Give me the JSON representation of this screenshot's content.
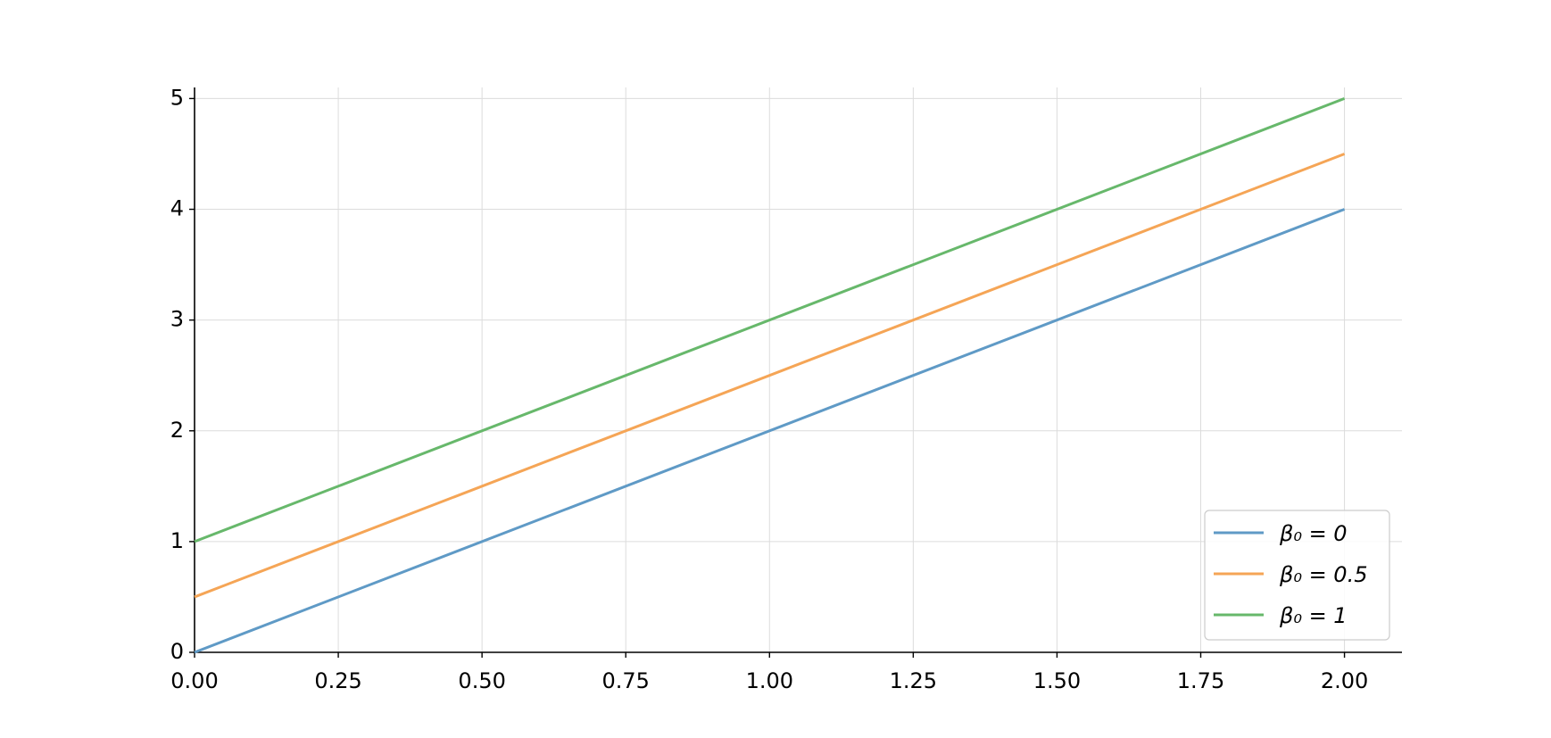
{
  "chart_data": {
    "type": "line",
    "x": [
      0,
      2
    ],
    "series": [
      {
        "name": "β₀ = 0",
        "color": "#5f9ac6",
        "values": [
          0,
          4
        ]
      },
      {
        "name": "β₀ = 0.5",
        "color": "#f5a556",
        "values": [
          0.5,
          4.5
        ]
      },
      {
        "name": "β₀ = 1",
        "color": "#67b86b",
        "values": [
          1,
          5
        ]
      }
    ],
    "xlim": [
      0,
      2.1
    ],
    "ylim": [
      0,
      5.1
    ],
    "xticks": [
      {
        "value": 0,
        "label": "0.00"
      },
      {
        "value": 0.25,
        "label": "0.25"
      },
      {
        "value": 0.5,
        "label": "0.50"
      },
      {
        "value": 0.75,
        "label": "0.75"
      },
      {
        "value": 1,
        "label": "1.00"
      },
      {
        "value": 1.25,
        "label": "1.25"
      },
      {
        "value": 1.5,
        "label": "1.50"
      },
      {
        "value": 1.75,
        "label": "1.75"
      },
      {
        "value": 2,
        "label": "2.00"
      }
    ],
    "yticks": [
      0,
      1,
      2,
      3,
      4,
      5
    ],
    "grid": true,
    "legend": "lower right"
  }
}
